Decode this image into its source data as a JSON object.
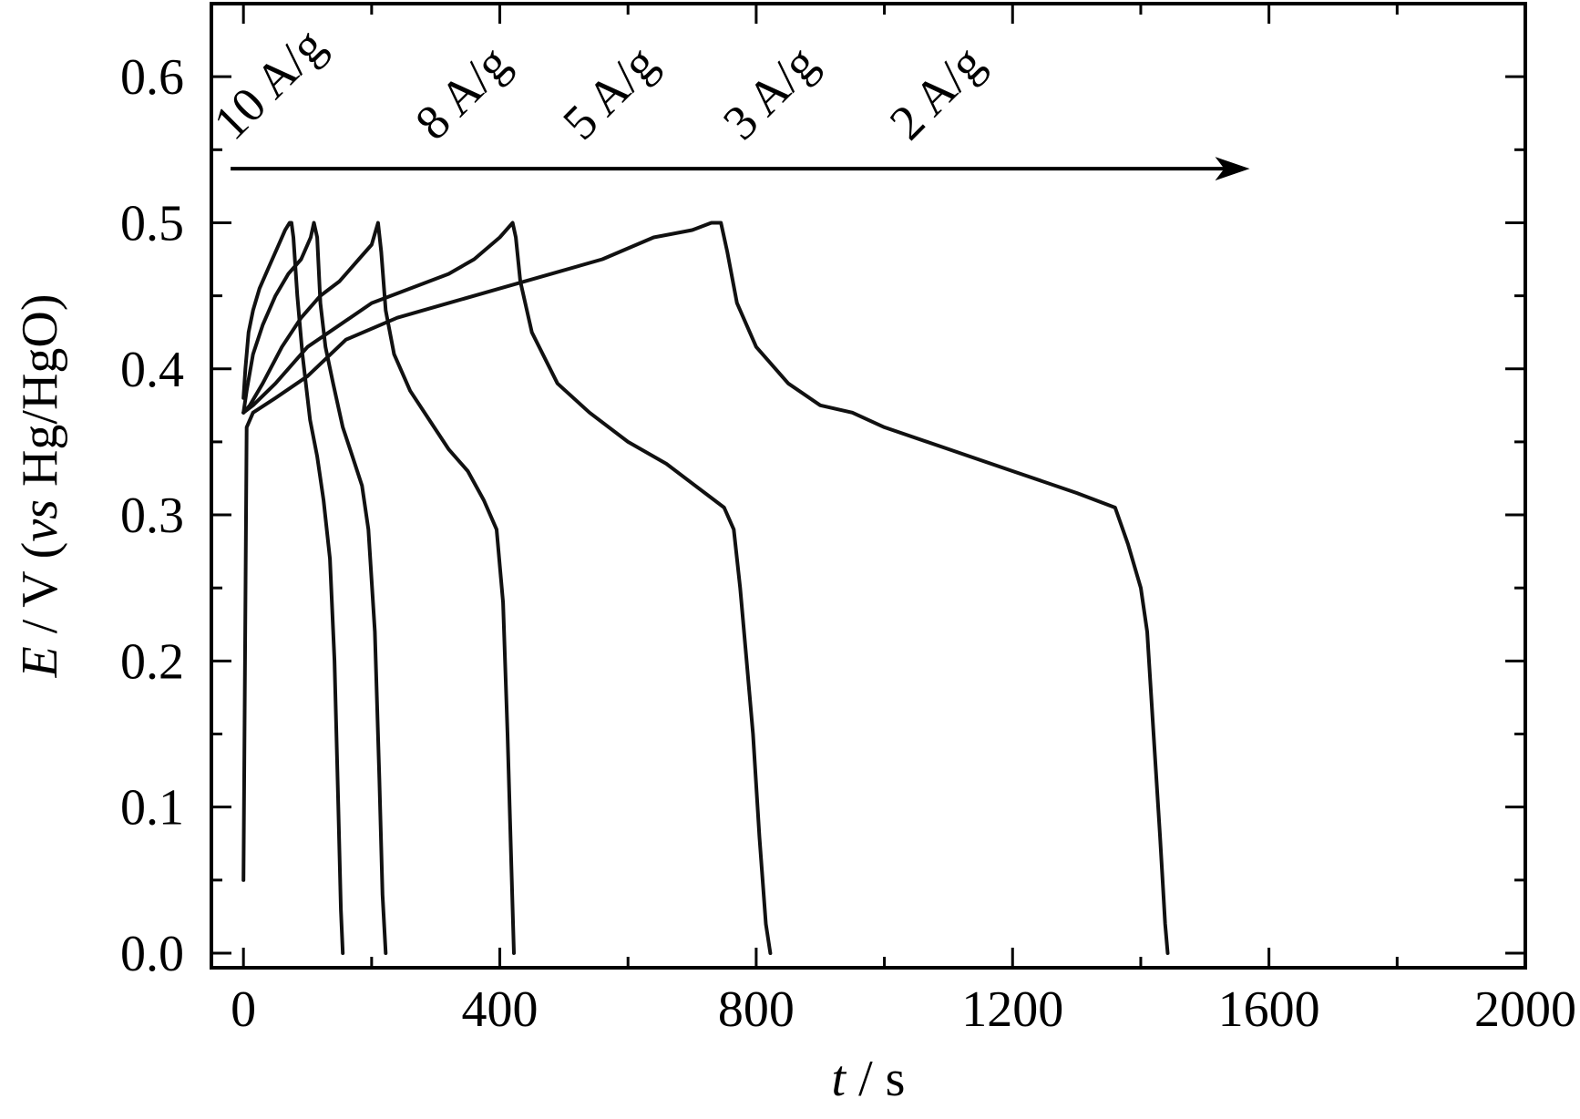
{
  "chart_data": {
    "type": "line",
    "title": "",
    "xlabel": {
      "var": "t",
      "unit": " / s"
    },
    "ylabel": {
      "var": "E",
      "unit_pre": " / V (",
      "ref_italic": "vs",
      "ref_rest": " Hg/HgO)"
    },
    "xlim": [
      -50,
      2000
    ],
    "ylim": [
      -0.01,
      0.65
    ],
    "x_ticks": [
      0,
      400,
      800,
      1200,
      1600,
      2000
    ],
    "y_ticks": [
      0.0,
      0.1,
      0.2,
      0.3,
      0.4,
      0.5,
      0.6
    ],
    "x_tick_labels": [
      "0",
      "400",
      "800",
      "1200",
      "1600",
      "2000"
    ],
    "y_tick_labels": [
      "0.0",
      "0.1",
      "0.2",
      "0.3",
      "0.4",
      "0.5",
      "0.6"
    ],
    "grid": false,
    "arrow": {
      "from": [
        -20,
        0.537
      ],
      "to": [
        1570,
        0.537
      ],
      "meaning": "increasing time / decreasing current density"
    },
    "series": [
      {
        "name": "10 A/g",
        "x": [
          0,
          3,
          8,
          15,
          25,
          40,
          55,
          65,
          72,
          75,
          78,
          84,
          92,
          104,
          115,
          125,
          135,
          142,
          148,
          152,
          155
        ],
        "y": [
          0.38,
          0.4,
          0.425,
          0.44,
          0.455,
          0.47,
          0.485,
          0.495,
          0.5,
          0.5,
          0.49,
          0.45,
          0.41,
          0.365,
          0.34,
          0.31,
          0.27,
          0.2,
          0.1,
          0.03,
          0.0
        ]
      },
      {
        "name": "8 A/g",
        "x": [
          0,
          5,
          15,
          30,
          50,
          70,
          90,
          105,
          110,
          115,
          120,
          128,
          140,
          155,
          170,
          185,
          195,
          205,
          212,
          217,
          222
        ],
        "y": [
          0.37,
          0.385,
          0.41,
          0.43,
          0.45,
          0.465,
          0.475,
          0.49,
          0.5,
          0.49,
          0.445,
          0.415,
          0.39,
          0.36,
          0.34,
          0.32,
          0.29,
          0.22,
          0.12,
          0.04,
          0.0
        ]
      },
      {
        "name": "5 A/g",
        "x": [
          0,
          10,
          30,
          60,
          90,
          120,
          150,
          180,
          200,
          210,
          215,
          222,
          235,
          260,
          290,
          320,
          350,
          375,
          395,
          405,
          412,
          418,
          422
        ],
        "y": [
          0.37,
          0.375,
          0.39,
          0.415,
          0.435,
          0.45,
          0.46,
          0.475,
          0.485,
          0.5,
          0.48,
          0.44,
          0.41,
          0.385,
          0.365,
          0.345,
          0.33,
          0.31,
          0.29,
          0.24,
          0.15,
          0.06,
          0.0
        ]
      },
      {
        "name": "3 A/g",
        "x": [
          0,
          15,
          50,
          100,
          150,
          200,
          260,
          320,
          360,
          400,
          420,
          425,
          432,
          450,
          490,
          540,
          600,
          660,
          720,
          750,
          765,
          775,
          785,
          795,
          805,
          815,
          822
        ],
        "y": [
          0.37,
          0.375,
          0.39,
          0.415,
          0.43,
          0.445,
          0.455,
          0.465,
          0.475,
          0.49,
          0.5,
          0.49,
          0.46,
          0.425,
          0.39,
          0.37,
          0.35,
          0.335,
          0.315,
          0.305,
          0.29,
          0.25,
          0.2,
          0.15,
          0.08,
          0.02,
          0.0
        ]
      },
      {
        "name": "2 A/g",
        "x": [
          0,
          5,
          15,
          50,
          100,
          160,
          240,
          320,
          400,
          480,
          560,
          640,
          700,
          730,
          745,
          755,
          770,
          800,
          850,
          900,
          950,
          1000,
          1100,
          1200,
          1300,
          1360,
          1380,
          1400,
          1410,
          1420,
          1430,
          1438,
          1442
        ],
        "y": [
          0.05,
          0.36,
          0.37,
          0.38,
          0.395,
          0.42,
          0.435,
          0.445,
          0.455,
          0.465,
          0.475,
          0.49,
          0.495,
          0.5,
          0.5,
          0.48,
          0.445,
          0.415,
          0.39,
          0.375,
          0.37,
          0.36,
          0.345,
          0.33,
          0.315,
          0.305,
          0.28,
          0.25,
          0.22,
          0.15,
          0.08,
          0.02,
          0.0
        ]
      }
    ],
    "curve_labels": [
      {
        "text": "10 A/g",
        "x": -15,
        "y": 0.555
      },
      {
        "text": "8 A/g",
        "x": 300,
        "y": 0.555
      },
      {
        "text": "5 A/g",
        "x": 530,
        "y": 0.555
      },
      {
        "text": "3 A/g",
        "x": 780,
        "y": 0.555
      },
      {
        "text": "2 A/g",
        "x": 1040,
        "y": 0.555
      }
    ]
  }
}
